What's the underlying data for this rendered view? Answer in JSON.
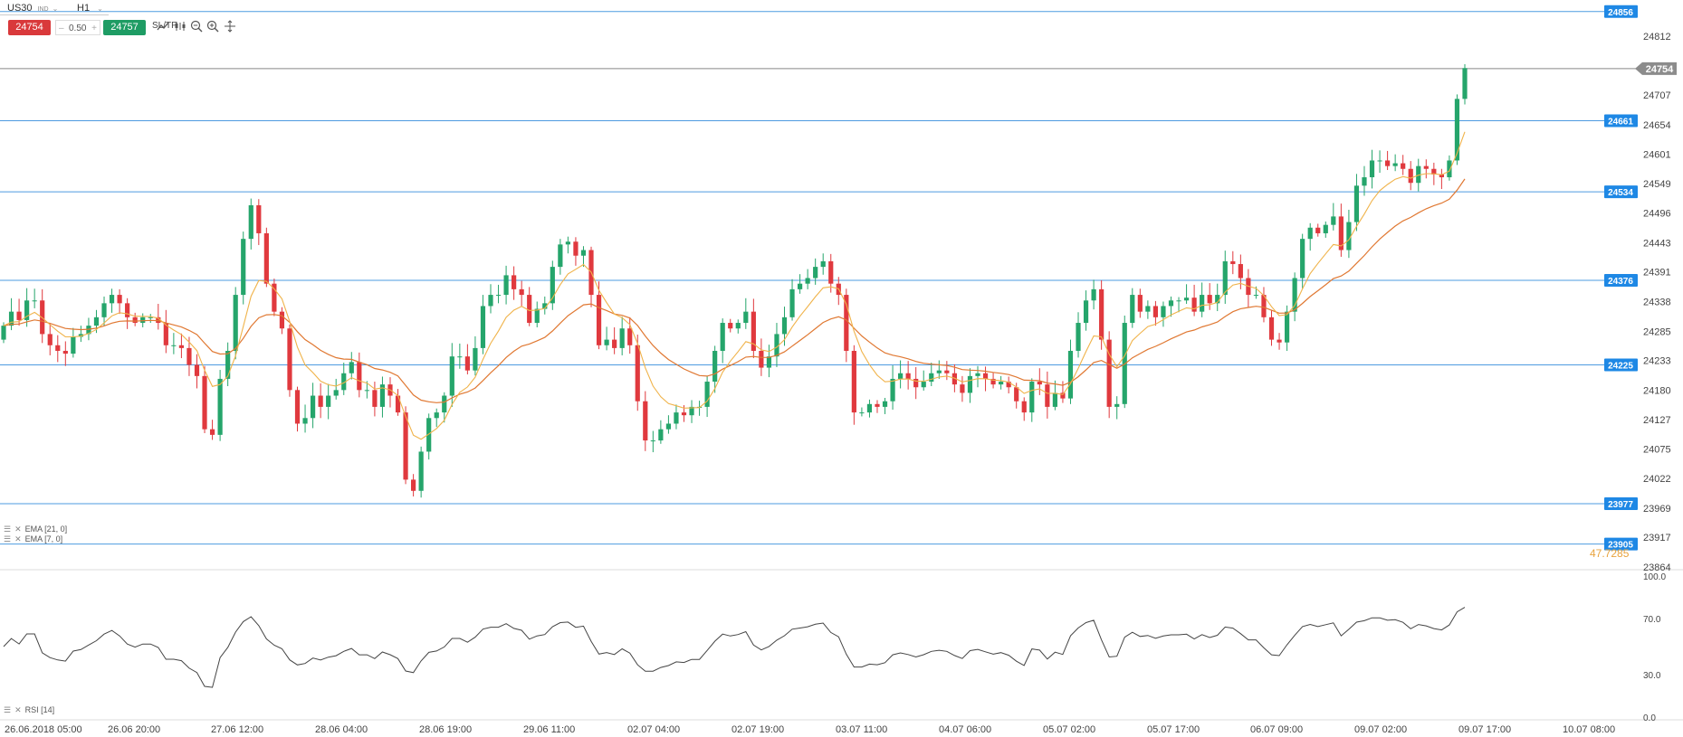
{
  "toolbar": {
    "symbol": "US30",
    "symbol_tag": "IND",
    "timeframe": "H1",
    "sell_price": "24754",
    "lot_value": "0.50",
    "buy_price": "24757",
    "sltp_label": "SL/TP",
    "icons": [
      "line-chart-icon",
      "indicators-icon",
      "zoom-out-icon",
      "zoom-in-icon",
      "crosshair-icon"
    ]
  },
  "colors": {
    "bear": "#e0393e",
    "bull": "#25a56b",
    "ema7": "#f0b34a",
    "ema21": "#e07832",
    "hline": "#4d9be0",
    "badge": "#1e88e5",
    "price": "#888888",
    "rsi": "#444444"
  },
  "price_axis": {
    "labels": [
      "24812",
      "24707",
      "24654",
      "24601",
      "24549",
      "24496",
      "24443",
      "24391",
      "24338",
      "24285",
      "24233",
      "24180",
      "24127",
      "24075",
      "24022",
      "23969",
      "23917",
      "23864"
    ],
    "current": "24754",
    "range": [
      23864,
      24880
    ]
  },
  "levels": [
    "24856",
    "24661",
    "24534",
    "24376",
    "24225",
    "23977",
    "23905"
  ],
  "overlay_value": "47.7285",
  "indicators": {
    "ema21": "EMA [21, 0]",
    "ema7": "EMA [7, 0]",
    "rsi": "RSI [14]"
  },
  "rsi_axis": [
    "100.0",
    "70.0",
    "30.0",
    "0.0"
  ],
  "time_axis": [
    "26.06.2018 05:00",
    "26.06 20:00",
    "27.06 12:00",
    "28.06 04:00",
    "28.06 19:00",
    "29.06 11:00",
    "02.07 04:00",
    "02.07 19:00",
    "03.07 11:00",
    "04.07 06:00",
    "05.07 02:00",
    "05.07 17:00",
    "06.07 09:00",
    "09.07 02:00",
    "09.07 17:00",
    "10.07 08:00"
  ],
  "chart_data": {
    "type": "candlestick",
    "symbol": "US30",
    "timeframe": "H1",
    "close": [
      24295,
      24320,
      24305,
      24340,
      24340,
      24280,
      24260,
      24250,
      24245,
      24275,
      24280,
      24295,
      24310,
      24335,
      24350,
      24335,
      24310,
      24300,
      24310,
      24310,
      24300,
      24260,
      24260,
      24255,
      24225,
      24205,
      24110,
      24100,
      24200,
      24250,
      24350,
      24450,
      24510,
      24460,
      24370,
      24320,
      24290,
      24180,
      24120,
      24130,
      24170,
      24150,
      24170,
      24180,
      24210,
      24230,
      24180,
      24180,
      24150,
      24190,
      24170,
      24140,
      24020,
      24000,
      24070,
      24130,
      24140,
      24170,
      24240,
      24240,
      24215,
      24255,
      24330,
      24350,
      24350,
      24385,
      24360,
      24350,
      24300,
      24325,
      24335,
      24400,
      24440,
      24445,
      24420,
      24430,
      24350,
      24260,
      24270,
      24255,
      24290,
      24260,
      24160,
      24090,
      24090,
      24110,
      24120,
      24140,
      24135,
      24150,
      24150,
      24195,
      24250,
      24300,
      24290,
      24300,
      24320,
      24250,
      24220,
      24240,
      24280,
      24310,
      24360,
      24370,
      24380,
      24400,
      24410,
      24370,
      24350,
      24250,
      24140,
      24140,
      24155,
      24150,
      24160,
      24200,
      24210,
      24200,
      24185,
      24195,
      24210,
      24215,
      24210,
      24190,
      24175,
      24205,
      24210,
      24200,
      24190,
      24195,
      24185,
      24160,
      24140,
      24195,
      24190,
      24150,
      24175,
      24165,
      24250,
      24300,
      24340,
      24360,
      24270,
      24150,
      24155,
      24300,
      24350,
      24320,
      24330,
      24310,
      24330,
      24340,
      24340,
      24345,
      24320,
      24350,
      24335,
      24350,
      24410,
      24405,
      24380,
      24350,
      24350,
      24310,
      24270,
      24265,
      24320,
      24380,
      24450,
      24470,
      24460,
      24475,
      24490,
      24430,
      24480,
      24545,
      24560,
      24590,
      24590,
      24580,
      24585,
      24575,
      24550,
      24580,
      24575,
      24565,
      24560,
      24590,
      24700,
      24755
    ],
    "ema7_end": 24690,
    "ema21_end": 24580,
    "current_price": 24754,
    "rsi_last": 78
  }
}
